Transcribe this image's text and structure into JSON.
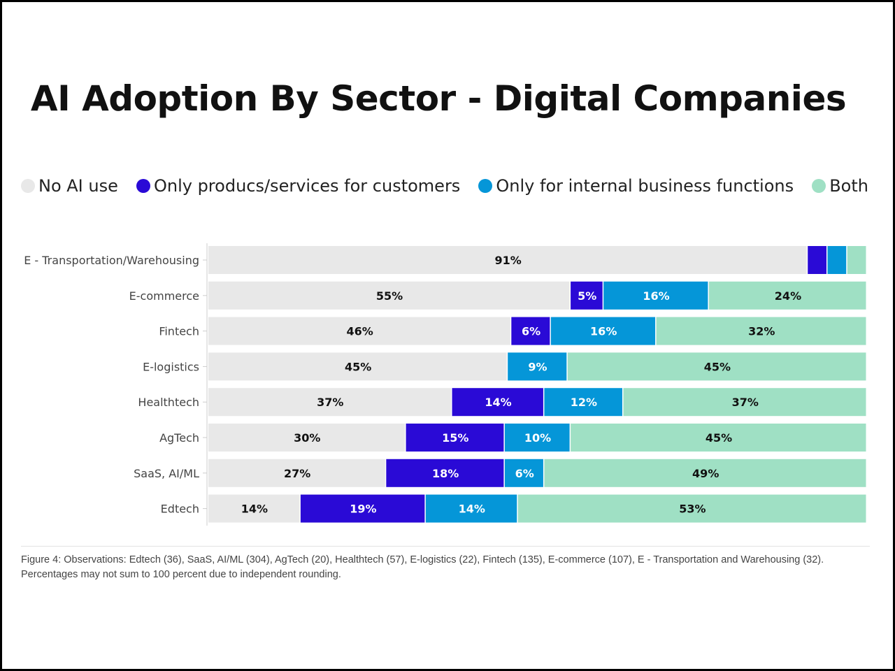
{
  "chart_data": {
    "type": "bar",
    "orientation": "horizontal",
    "stacked": true,
    "title": "AI Adoption By Sector - Digital Companies",
    "categories": [
      "E - Transportation/Warehousing",
      "E-commerce",
      "Fintech",
      "E-logistics",
      "Healthtech",
      "AgTech",
      "SaaS, AI/ML",
      "Edtech"
    ],
    "series": [
      {
        "name": "No AI use",
        "color": "#e8e8e8",
        "values": [
          91,
          55,
          46,
          45,
          37,
          30,
          27,
          14
        ],
        "labels": [
          "91%",
          "55%",
          "46%",
          "45%",
          "37%",
          "30%",
          "27%",
          "14%"
        ]
      },
      {
        "name": "Only producs/services for customers",
        "color": "#2a0ad6",
        "values": [
          3,
          5,
          6,
          0,
          14,
          15,
          18,
          19
        ],
        "labels": [
          "",
          "5%",
          "6%",
          "",
          "14%",
          "15%",
          "18%",
          "19%"
        ]
      },
      {
        "name": "Only for internal business functions",
        "color": "#0596d8",
        "values": [
          3,
          16,
          16,
          9,
          12,
          10,
          6,
          14
        ],
        "labels": [
          "",
          "16%",
          "16%",
          "9%",
          "12%",
          "10%",
          "6%",
          "14%"
        ]
      },
      {
        "name": "Both",
        "color": "#9fe0c4",
        "values": [
          3,
          24,
          32,
          45,
          37,
          45,
          49,
          53
        ],
        "labels": [
          "",
          "24%",
          "32%",
          "45%",
          "37%",
          "45%",
          "49%",
          "53%"
        ]
      }
    ],
    "legend_position": "top",
    "grid": false
  },
  "legend_dots": [
    {
      "label": "No AI use",
      "color": "#e8e8e8"
    },
    {
      "label": "Only producs/services for customers",
      "color": "#2a0ad6"
    },
    {
      "label": "Only for internal business functions",
      "color": "#0596d8"
    },
    {
      "label": "Both",
      "color": "#9fe0c4"
    }
  ],
  "footnote": "Figure 4: Observations: Edtech (36), SaaS, AI/ML (304), AgTech (20), Healthtech (57), E-logistics (22), Fintech (135), E-commerce (107), E - Transportation and Warehousing (32). Percentages may not sum to 100 percent due to independent rounding."
}
